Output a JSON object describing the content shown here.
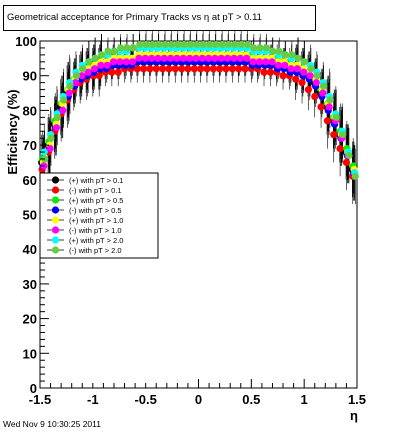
{
  "title": "Geometrical acceptance for Primary Tracks vs   η at pT > 0.11",
  "footer": "Wed Nov  9 10:30:25 2011",
  "chart_data": {
    "type": "scatter",
    "xlabel": "η",
    "ylabel": "Efficiency (%)",
    "xlim": [
      -1.5,
      1.5
    ],
    "ylim": [
      0,
      100
    ],
    "xticks": [
      -1.5,
      -1,
      -0.5,
      0,
      0.5,
      1,
      1.5
    ],
    "yticks": [
      0,
      10,
      20,
      30,
      40,
      50,
      60,
      70,
      80,
      90,
      100
    ],
    "grid": false,
    "legend_position": "left-middle",
    "x": [
      -1.47,
      -1.41,
      -1.35,
      -1.29,
      -1.23,
      -1.17,
      -1.11,
      -1.05,
      -0.99,
      -0.93,
      -0.87,
      -0.81,
      -0.75,
      -0.69,
      -0.63,
      -0.57,
      -0.51,
      -0.45,
      -0.39,
      -0.33,
      -0.27,
      -0.21,
      -0.15,
      -0.09,
      -0.03,
      0.03,
      0.09,
      0.15,
      0.21,
      0.27,
      0.33,
      0.39,
      0.45,
      0.51,
      0.57,
      0.63,
      0.69,
      0.75,
      0.81,
      0.87,
      0.93,
      0.99,
      1.05,
      1.11,
      1.17,
      1.23,
      1.29,
      1.35,
      1.41,
      1.47
    ],
    "series": [
      {
        "name": "(+) with pT > 0.1",
        "color": "#000000",
        "values": [
          65,
          70,
          76,
          81,
          85,
          88,
          90,
          91,
          92,
          92,
          93,
          93,
          93,
          94,
          94,
          94,
          94,
          94,
          94,
          94,
          94,
          94,
          94,
          94,
          94,
          94,
          94,
          94,
          94,
          94,
          94,
          94,
          94,
          94,
          94,
          94,
          93,
          93,
          93,
          92,
          92,
          91,
          90,
          88,
          85,
          81,
          77,
          73,
          68,
          63
        ]
      },
      {
        "name": "(-) with pT > 0.1",
        "color": "#ff0000",
        "values": [
          63,
          68,
          74,
          79,
          83,
          86,
          88,
          89,
          90,
          90,
          91,
          91,
          91,
          92,
          92,
          92,
          92,
          92,
          92,
          92,
          92,
          92,
          92,
          92,
          92,
          92,
          92,
          92,
          92,
          92,
          92,
          92,
          92,
          92,
          92,
          91,
          91,
          91,
          90,
          90,
          89,
          88,
          86,
          84,
          81,
          77,
          73,
          69,
          65,
          61
        ]
      },
      {
        "name": "(+) with pT > 0.5",
        "color": "#00ee00",
        "values": [
          66,
          71,
          77,
          82,
          86,
          89,
          91,
          92,
          93,
          93,
          94,
          94,
          95,
          95,
          95,
          95,
          96,
          96,
          96,
          96,
          96,
          96,
          96,
          96,
          96,
          96,
          96,
          96,
          96,
          96,
          96,
          96,
          96,
          96,
          95,
          95,
          95,
          95,
          94,
          94,
          93,
          92,
          91,
          89,
          86,
          82,
          78,
          74,
          69,
          64
        ]
      },
      {
        "name": "(-) with pT > 0.5",
        "color": "#0000ff",
        "values": [
          64,
          69,
          75,
          80,
          84,
          87,
          89,
          90,
          91,
          92,
          92,
          93,
          93,
          93,
          93,
          94,
          94,
          94,
          94,
          94,
          94,
          94,
          94,
          94,
          94,
          94,
          94,
          94,
          94,
          94,
          94,
          94,
          94,
          93,
          93,
          93,
          93,
          92,
          92,
          91,
          91,
          90,
          89,
          87,
          84,
          80,
          76,
          72,
          67,
          62
        ]
      },
      {
        "name": "(+) with pT > 1.0",
        "color": "#ffff00",
        "values": [
          65,
          70,
          76,
          82,
          86,
          89,
          91,
          92,
          93,
          94,
          94,
          95,
          95,
          95,
          95,
          96,
          96,
          96,
          96,
          96,
          96,
          96,
          96,
          96,
          96,
          96,
          96,
          96,
          96,
          96,
          96,
          96,
          96,
          95,
          95,
          95,
          95,
          94,
          94,
          93,
          93,
          92,
          91,
          89,
          86,
          82,
          78,
          73,
          68,
          63
        ]
      },
      {
        "name": "(-) with pT > 1.0",
        "color": "#ff00ff",
        "values": [
          64,
          69,
          75,
          80,
          85,
          88,
          90,
          91,
          92,
          93,
          93,
          94,
          94,
          94,
          94,
          95,
          95,
          95,
          95,
          95,
          95,
          95,
          95,
          95,
          95,
          95,
          95,
          95,
          95,
          95,
          95,
          95,
          95,
          94,
          94,
          94,
          94,
          93,
          93,
          92,
          92,
          91,
          90,
          88,
          85,
          81,
          77,
          72,
          67,
          62
        ]
      },
      {
        "name": "(+) with pT > 2.0",
        "color": "#00ffff",
        "values": [
          68,
          73,
          79,
          84,
          88,
          91,
          93,
          94,
          95,
          96,
          96,
          97,
          97,
          97,
          98,
          98,
          98,
          98,
          98,
          98,
          98,
          98,
          98,
          98,
          98,
          98,
          98,
          98,
          98,
          98,
          98,
          98,
          98,
          97,
          97,
          97,
          97,
          96,
          96,
          95,
          95,
          94,
          93,
          91,
          88,
          84,
          79,
          74,
          68,
          62
        ]
      },
      {
        "name": "(-) with pT > 2.0",
        "color": "#66cc44",
        "values": [
          66,
          72,
          78,
          83,
          87,
          90,
          92,
          94,
          95,
          96,
          97,
          97,
          98,
          98,
          98,
          99,
          99,
          99,
          99,
          99,
          99,
          99,
          99,
          99,
          99,
          99,
          99,
          99,
          99,
          99,
          99,
          99,
          99,
          98,
          98,
          98,
          97,
          97,
          96,
          96,
          95,
          94,
          92,
          90,
          87,
          83,
          78,
          73,
          67,
          61
        ]
      }
    ]
  }
}
